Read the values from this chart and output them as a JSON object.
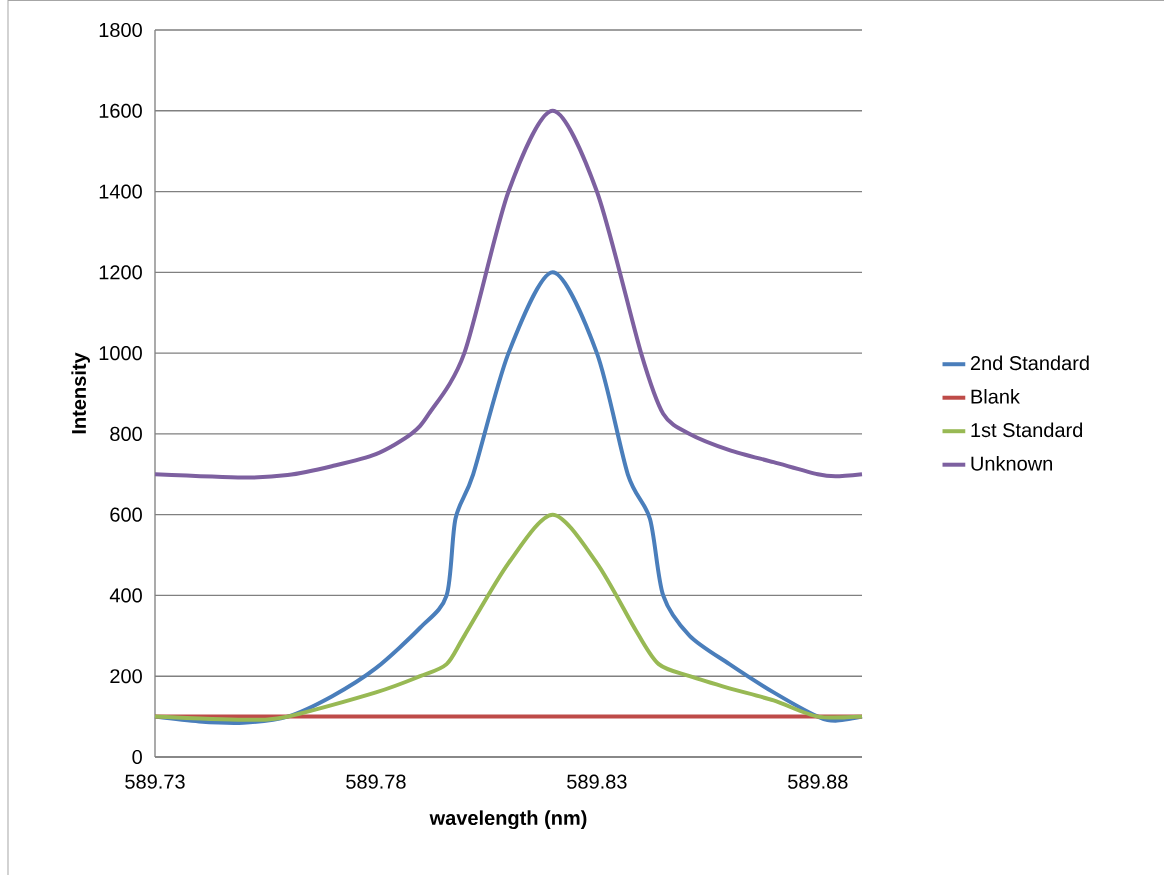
{
  "chart_data": {
    "type": "line",
    "xlabel": "wavelength (nm)",
    "ylabel": "Intensity",
    "xlim": [
      589.73,
      589.89
    ],
    "xticks": [
      589.73,
      589.78,
      589.83,
      589.88
    ],
    "ylim": [
      0,
      1800
    ],
    "yticks": [
      0,
      200,
      400,
      600,
      800,
      1000,
      1200,
      1400,
      1600,
      1800
    ],
    "grid": "y",
    "legend": "right",
    "marker": "none",
    "line_style": "solid",
    "series": [
      {
        "name": "2nd Standard",
        "color": "#4a7ebb",
        "x": [
          589.73,
          589.74,
          589.75,
          589.76,
          589.77,
          589.78,
          589.79,
          589.796,
          589.798,
          589.802,
          589.81,
          589.82,
          589.83,
          589.837,
          589.842,
          589.845,
          589.851,
          589.86,
          589.87,
          589.88,
          589.884,
          589.89
        ],
        "values": [
          100,
          88,
          85,
          100,
          150,
          220,
          320,
          400,
          590,
          700,
          1000,
          1200,
          1000,
          700,
          590,
          400,
          300,
          230,
          160,
          100,
          90,
          100
        ]
      },
      {
        "name": "Blank",
        "color": "#be4b48",
        "x": [
          589.73,
          589.89
        ],
        "values": [
          100,
          100
        ]
      },
      {
        "name": "1st Standard",
        "color": "#98b954",
        "x": [
          589.73,
          589.75,
          589.76,
          589.78,
          589.79,
          589.796,
          589.8,
          589.81,
          589.82,
          589.83,
          589.839,
          589.844,
          589.851,
          589.86,
          589.87,
          589.88,
          589.89
        ],
        "values": [
          100,
          92,
          100,
          160,
          200,
          230,
          300,
          480,
          600,
          480,
          310,
          230,
          200,
          170,
          140,
          100,
          100
        ]
      },
      {
        "name": "Unknown",
        "color": "#7d60a0",
        "x": [
          589.73,
          589.75,
          589.76,
          589.77,
          589.78,
          589.788,
          589.792,
          589.8,
          589.81,
          589.82,
          589.83,
          589.84,
          589.845,
          589.851,
          589.86,
          589.87,
          589.88,
          589.884,
          589.89
        ],
        "values": [
          700,
          692,
          698,
          720,
          750,
          800,
          850,
          1000,
          1400,
          1600,
          1400,
          1000,
          850,
          800,
          760,
          730,
          700,
          695,
          700
        ]
      }
    ]
  }
}
